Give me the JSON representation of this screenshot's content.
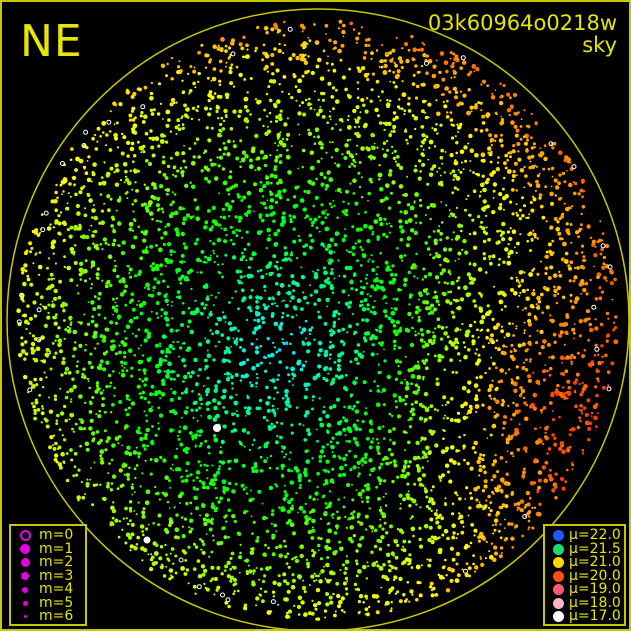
{
  "direction_label": "NE",
  "observation_id": "03k60964o0218w",
  "image_type": "sky",
  "colors": {
    "frame": "#c8c800",
    "text": "#e6e600",
    "background": "#000000",
    "magnitude_symbol": "#e600e6"
  },
  "magnitude_legend": [
    {
      "label": "m=0",
      "style": "ring"
    },
    {
      "label": "m=1"
    },
    {
      "label": "m=2"
    },
    {
      "label": "m=3"
    },
    {
      "label": "m=4"
    },
    {
      "label": "m=5"
    },
    {
      "label": "m=6"
    }
  ],
  "brightness_legend": [
    {
      "label": "μ=22.0",
      "color": "#1e5aff"
    },
    {
      "label": "μ=21.5",
      "color": "#1edc6e"
    },
    {
      "label": "μ=21.0",
      "color": "#ffd700"
    },
    {
      "label": "μ=20.0",
      "color": "#ff5014"
    },
    {
      "label": "μ=19.0",
      "color": "#ff5a6e"
    },
    {
      "label": "μ=18.0",
      "color": "#ffb4c8"
    },
    {
      "label": "μ=17.0",
      "color": "#ffffff"
    }
  ]
}
